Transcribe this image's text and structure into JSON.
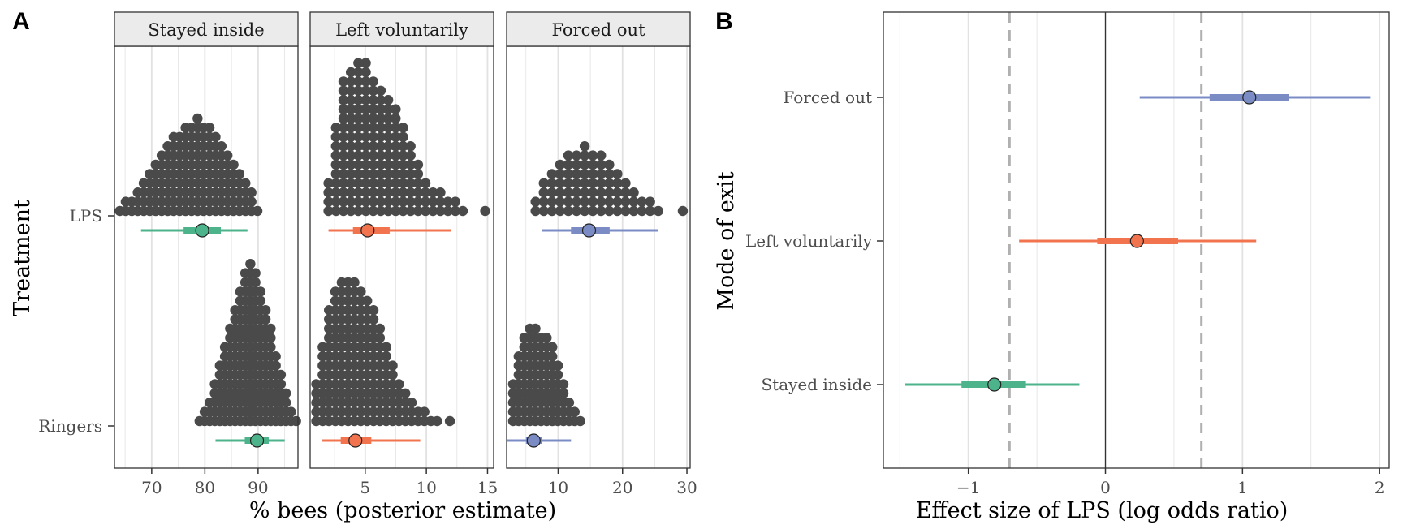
{
  "figure": {
    "panel_labels": [
      "A",
      "B"
    ],
    "colors": {
      "stayed": "#4cb38b",
      "left": "#f2744e",
      "forced": "#7b8cc4",
      "dots": "#4a4a4a",
      "strip": "#ebebeb",
      "vgrid": "#e2e2e2",
      "ref": "#b0b0b0"
    }
  },
  "chart_data": [
    {
      "id": "A",
      "type": "scatter",
      "subtype": "faceted dotplot with posterior point-intervals",
      "ylabel": "Treatment",
      "xlabel": "% bees (posterior estimate)",
      "categories": [
        "LPS",
        "Ringers"
      ],
      "grid": "vertical major and minor gridlines only",
      "facets": [
        {
          "name": "Stayed inside",
          "color_key": "stayed",
          "xlim": [
            63,
            97.5
          ],
          "xticks": [
            70,
            80,
            90
          ],
          "xtick_labels": [
            "70",
            "80",
            "90"
          ],
          "series": [
            {
              "treatment": "LPS",
              "dot_counts": [
                1,
                2,
                2,
                3,
                4,
                5,
                6,
                7,
                8,
                9,
                9,
                10,
                10,
                11,
                10,
                10,
                9,
                8,
                7,
                6,
                5,
                4,
                3,
                1
              ],
              "dot_x_start": 64,
              "dot_x_step": 1.125,
              "median": 79.5,
              "inner": [
                76,
                83
              ],
              "outer": [
                68,
                88
              ]
            },
            {
              "treatment": "Ringers",
              "dot_counts": [
                1,
                2,
                3,
                5,
                7,
                9,
                11,
                13,
                15,
                17,
                18,
                17,
                15,
                13,
                11,
                8,
                6,
                4,
                2,
                1
              ],
              "dot_x_start": 79,
              "dot_x_step": 0.955,
              "median": 89.8,
              "inner": [
                87.5,
                92
              ],
              "outer": [
                82,
                95
              ]
            }
          ]
        },
        {
          "name": "Left voluntarily",
          "color_key": "left",
          "xlim": [
            0.5,
            15.5
          ],
          "xticks": [
            5,
            10,
            15
          ],
          "xtick_labels": [
            "5",
            "10",
            "15"
          ],
          "series": [
            {
              "treatment": "LPS",
              "dot_counts": [
                4,
                10,
                15,
                16,
                17,
                17,
                15,
                14,
                13,
                12,
                10,
                8,
                6,
                4,
                3,
                3,
                2,
                2,
                1,
                0,
                0,
                1
              ],
              "dot_x_start": 2,
              "dot_x_step": 0.61,
              "median": 5.2,
              "inner": [
                4,
                7
              ],
              "outer": [
                2,
                12
              ]
            },
            {
              "treatment": "Ringers",
              "dot_counts": [
                5,
                9,
                13,
                15,
                16,
                16,
                16,
                15,
                14,
                13,
                11,
                9,
                7,
                5,
                4,
                3,
                2,
                2,
                1,
                1,
                0,
                1
              ],
              "dot_x_start": 1,
              "dot_x_step": 0.52,
              "median": 4.2,
              "inner": [
                3,
                5.5
              ],
              "outer": [
                1.5,
                9.5
              ]
            }
          ]
        },
        {
          "name": "Forced out",
          "color_key": "forced",
          "xlim": [
            2,
            30.5
          ],
          "xticks": [
            10,
            20,
            30
          ],
          "xtick_labels": [
            "10",
            "20",
            "30"
          ],
          "series": [
            {
              "treatment": "LPS",
              "dot_counts": [
                2,
                4,
                5,
                6,
                7,
                7,
                8,
                7,
                7,
                6,
                5,
                4,
                3,
                2,
                2,
                1,
                0,
                0,
                1
              ],
              "dot_x_start": 6.5,
              "dot_x_step": 1.27,
              "median": 14.8,
              "inner": [
                12,
                18
              ],
              "outer": [
                7.5,
                25.5
              ]
            },
            {
              "treatment": "Ringers",
              "dot_counts": [
                5,
                8,
                10,
                11,
                11,
                10,
                10,
                9,
                7,
                5,
                3,
                2,
                1
              ],
              "dot_x_start": 3,
              "dot_x_step": 0.87,
              "median": 6.2,
              "inner": [
                5,
                7.5
              ],
              "outer": [
                2,
                12
              ]
            }
          ]
        }
      ]
    },
    {
      "id": "B",
      "type": "scatter",
      "subtype": "point-interval (forest) plot",
      "ylabel": "Mode of exit",
      "xlabel": "Effect size of LPS (log odds ratio)",
      "xlim": [
        -1.62,
        2.07
      ],
      "xticks": [
        -1,
        0,
        1,
        2
      ],
      "xtick_labels": [
        "−1",
        "0",
        "1",
        "2"
      ],
      "zero_line": 0,
      "dashed_reference_lines": [
        -0.7,
        0.7
      ],
      "categories": [
        "Forced out",
        "Left voluntarily",
        "Stayed inside"
      ],
      "rows": [
        {
          "category": "Forced out",
          "color_key": "forced",
          "median": 1.05,
          "inner": [
            0.76,
            1.34
          ],
          "outer": [
            0.25,
            1.93
          ]
        },
        {
          "category": "Left voluntarily",
          "color_key": "left",
          "median": 0.23,
          "inner": [
            -0.06,
            0.53
          ],
          "outer": [
            -0.63,
            1.1
          ]
        },
        {
          "category": "Stayed inside",
          "color_key": "stayed",
          "median": -0.81,
          "inner": [
            -1.05,
            -0.58
          ],
          "outer": [
            -1.46,
            -0.19
          ]
        }
      ]
    }
  ]
}
